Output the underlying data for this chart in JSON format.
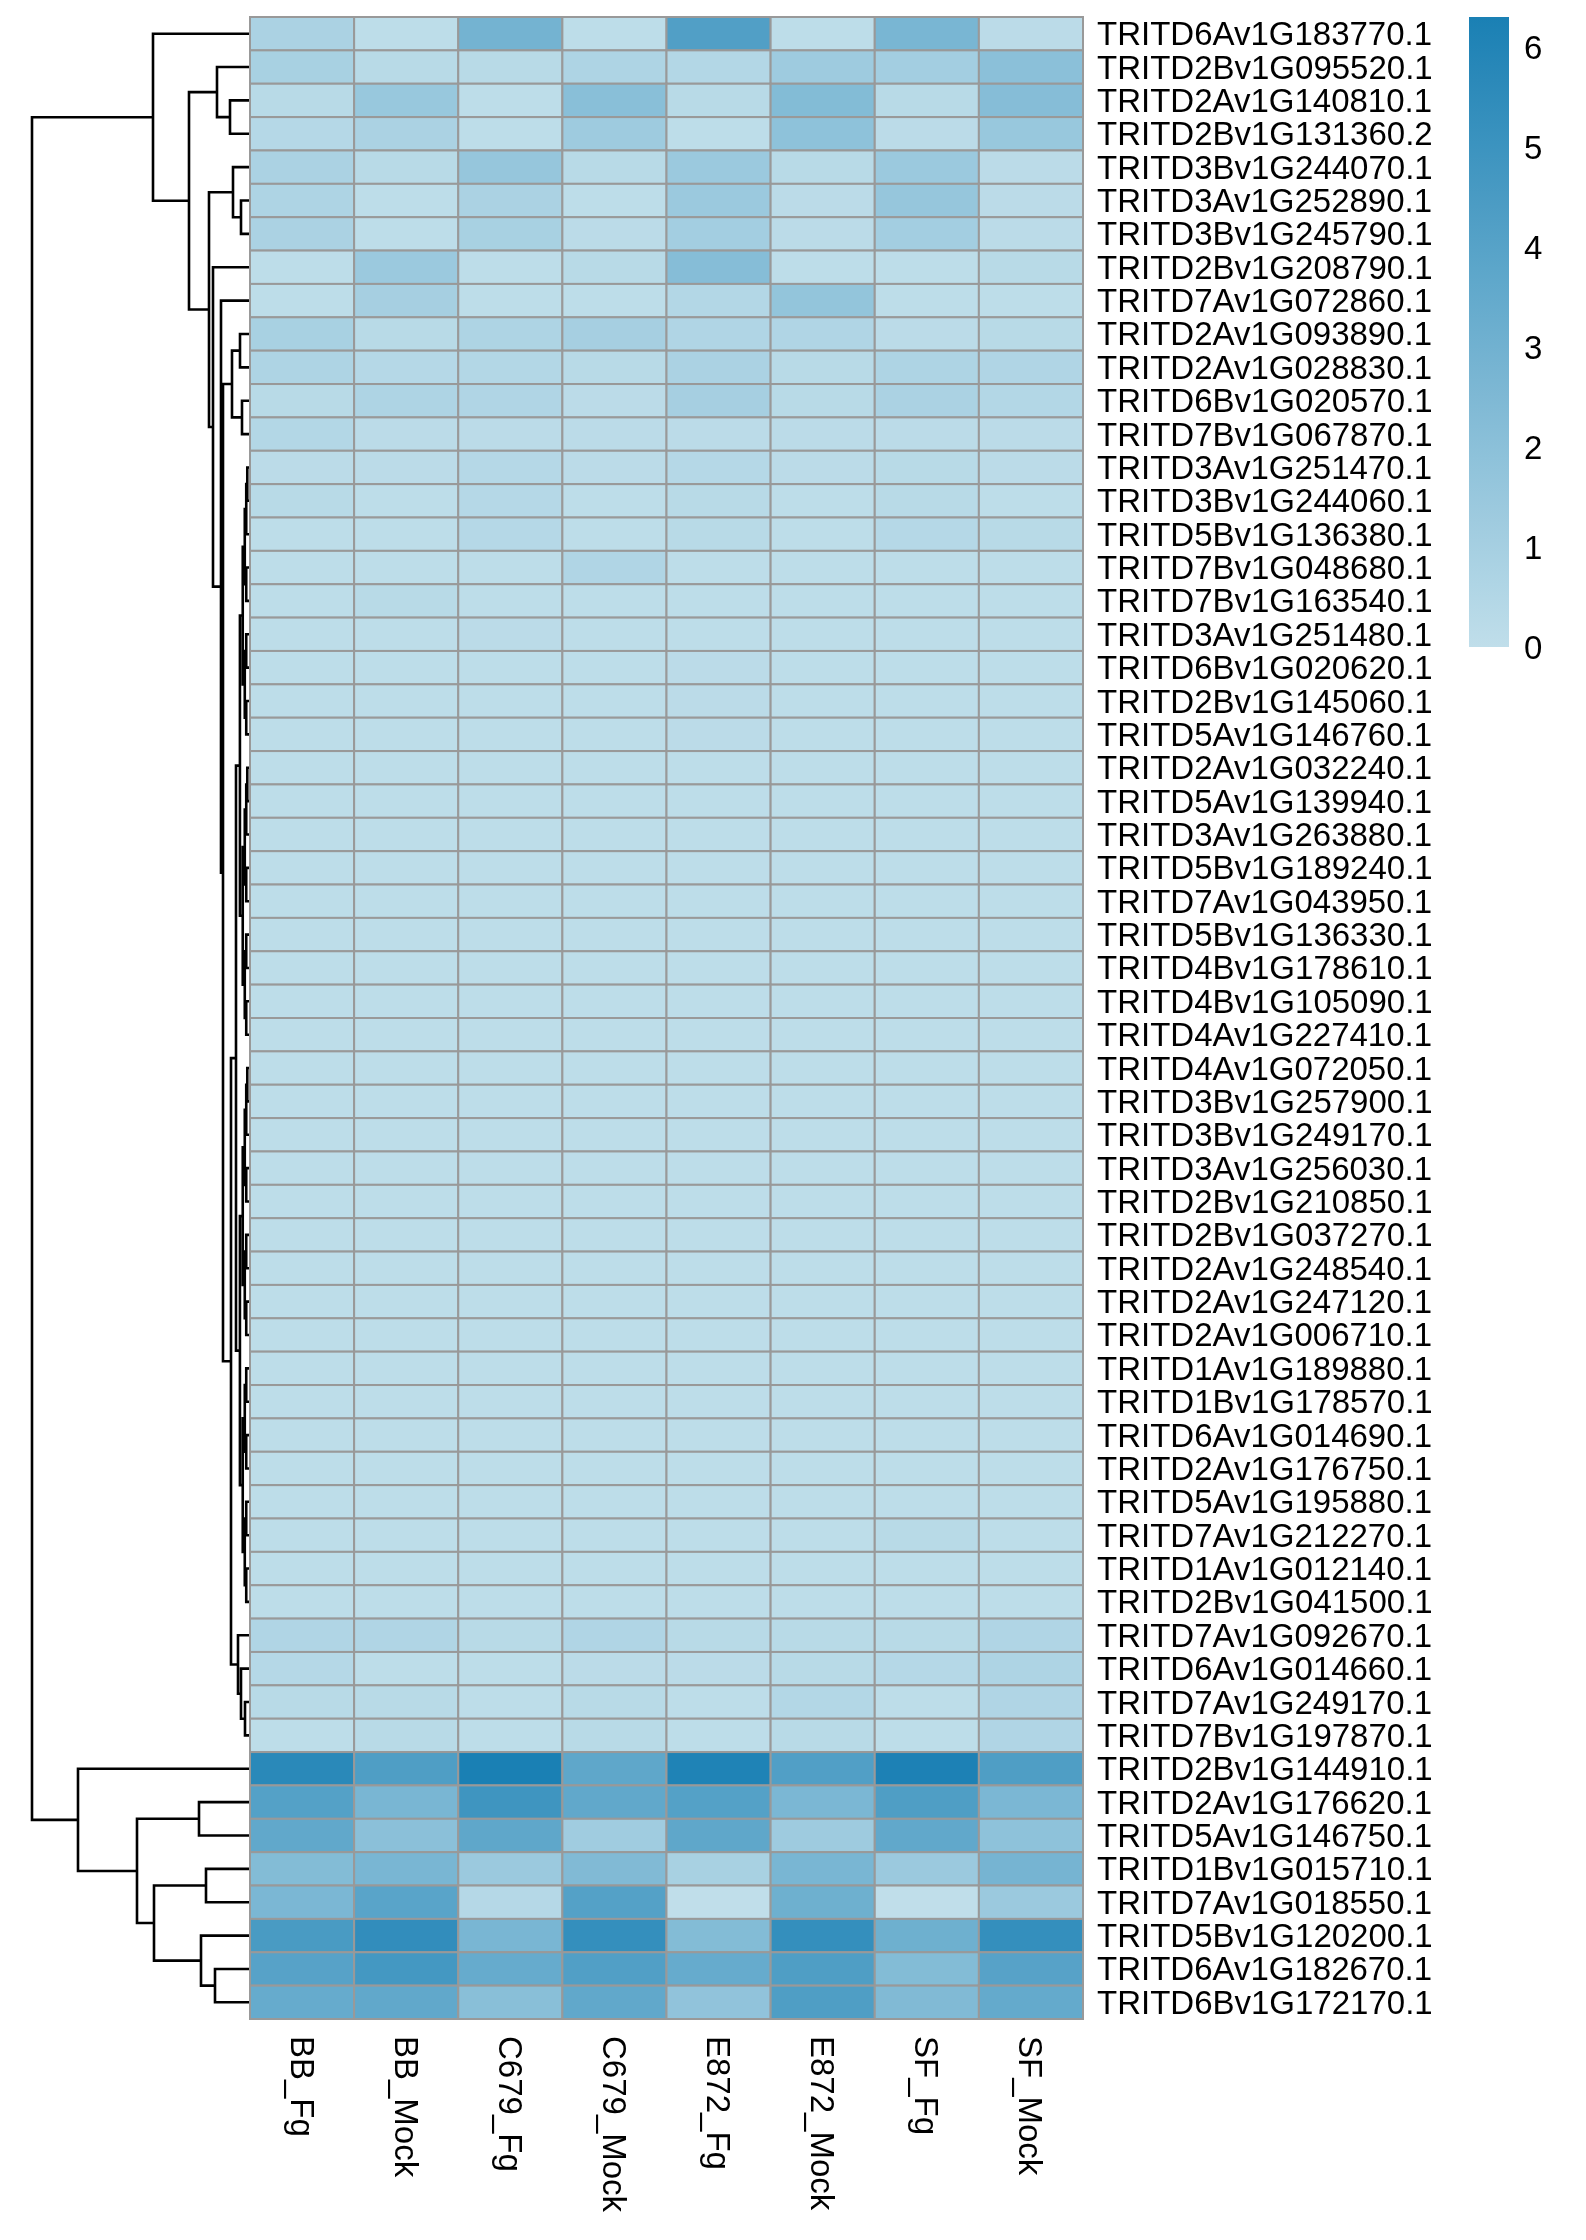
{
  "chart_data": {
    "type": "heatmap",
    "categories": [
      "BB_Fg",
      "BB_Mock",
      "C679_Fg",
      "C679_Mock",
      "E872_Fg",
      "E872_Mock",
      "SF_Fg",
      "SF_Mock"
    ],
    "y_categories": [
      "TRITD6Av1G183770.1",
      "TRITD2Bv1G095520.1",
      "TRITD2Av1G140810.1",
      "TRITD2Bv1G131360.2",
      "TRITD3Bv1G244070.1",
      "TRITD3Av1G252890.1",
      "TRITD3Bv1G245790.1",
      "TRITD2Bv1G208790.1",
      "TRITD7Av1G072860.1",
      "TRITD2Av1G093890.1",
      "TRITD2Av1G028830.1",
      "TRITD6Bv1G020570.1",
      "TRITD7Bv1G067870.1",
      "TRITD3Av1G251470.1",
      "TRITD3Bv1G244060.1",
      "TRITD5Bv1G136380.1",
      "TRITD7Bv1G048680.1",
      "TRITD7Bv1G163540.1",
      "TRITD3Av1G251480.1",
      "TRITD6Bv1G020620.1",
      "TRITD2Bv1G145060.1",
      "TRITD5Av1G146760.1",
      "TRITD2Av1G032240.1",
      "TRITD5Av1G139940.1",
      "TRITD3Av1G263880.1",
      "TRITD5Bv1G189240.1",
      "TRITD7Av1G043950.1",
      "TRITD5Bv1G136330.1",
      "TRITD4Bv1G178610.1",
      "TRITD4Bv1G105090.1",
      "TRITD4Av1G227410.1",
      "TRITD4Av1G072050.1",
      "TRITD3Bv1G257900.1",
      "TRITD3Bv1G249170.1",
      "TRITD3Av1G256030.1",
      "TRITD2Bv1G210850.1",
      "TRITD2Bv1G037270.1",
      "TRITD2Av1G248540.1",
      "TRITD2Av1G247120.1",
      "TRITD2Av1G006710.1",
      "TRITD1Av1G189880.1",
      "TRITD1Bv1G178570.1",
      "TRITD6Av1G014690.1",
      "TRITD2Av1G176750.1",
      "TRITD5Av1G195880.1",
      "TRITD7Av1G212270.1",
      "TRITD1Av1G012140.1",
      "TRITD2Bv1G041500.1",
      "TRITD7Av1G092670.1",
      "TRITD6Av1G014660.1",
      "TRITD7Av1G249170.1",
      "TRITD7Bv1G197870.1",
      "TRITD2Bv1G144910.1",
      "TRITD2Av1G176620.1",
      "TRITD5Av1G146750.1",
      "TRITD1Bv1G015710.1",
      "TRITD7Av1G018550.1",
      "TRITD5Bv1G120200.1",
      "TRITD6Av1G182670.1",
      "TRITD6Bv1G172170.1"
    ],
    "cells": [
      [
        0.8,
        0.1,
        2.9,
        0.1,
        4.2,
        0.1,
        2.7,
        0.2
      ],
      [
        0.9,
        0.3,
        0.3,
        0.7,
        0.5,
        1.3,
        1.1,
        2.0
      ],
      [
        0.3,
        1.5,
        0.1,
        2.1,
        0.3,
        2.3,
        0.3,
        2.2
      ],
      [
        0.4,
        0.8,
        0.1,
        1.3,
        0.1,
        1.9,
        0.2,
        1.5
      ],
      [
        0.8,
        0.3,
        1.6,
        0.3,
        1.4,
        0.3,
        1.4,
        0.2
      ],
      [
        0.7,
        0.1,
        0.8,
        0.1,
        1.4,
        0.2,
        1.6,
        0.2
      ],
      [
        0.8,
        0.1,
        0.9,
        0.2,
        1.1,
        0.2,
        1.1,
        0.2
      ],
      [
        0.1,
        1.4,
        0.1,
        0.3,
        2.2,
        0.1,
        0.1,
        0.3
      ],
      [
        0.1,
        1.0,
        0.1,
        0.1,
        0.5,
        1.7,
        0.1,
        0.1
      ],
      [
        0.9,
        0.3,
        0.7,
        1.0,
        0.6,
        0.6,
        0.2,
        0.3
      ],
      [
        0.7,
        0.4,
        0.5,
        0.3,
        0.8,
        0.3,
        0.7,
        0.6
      ],
      [
        0.3,
        0.7,
        0.6,
        0.2,
        1.0,
        0.3,
        0.8,
        0.5
      ],
      [
        0.5,
        0.2,
        0.2,
        0.2,
        0.2,
        0.2,
        0.2,
        0.2
      ],
      [
        0.2,
        0.2,
        0.4,
        0.2,
        0.4,
        0.2,
        0.3,
        0.2
      ],
      [
        0.3,
        0.1,
        0.4,
        0.1,
        0.3,
        0.1,
        0.3,
        0.1
      ],
      [
        0.1,
        0.1,
        0.4,
        0.1,
        0.3,
        0.1,
        0.4,
        0.3
      ],
      [
        0.1,
        0.1,
        0.1,
        0.6,
        0.1,
        0.1,
        0.1,
        0.1
      ],
      [
        0.1,
        0.3,
        0.1,
        0.1,
        0.1,
        0.1,
        0.1,
        0.1
      ],
      [
        0.1,
        0.1,
        0.2,
        0.1,
        0.1,
        0.1,
        0.1,
        0.1
      ],
      [
        0.1,
        0.1,
        0.1,
        0.1,
        0.2,
        0.1,
        0.1,
        0.1
      ],
      [
        0.1,
        0.1,
        0.1,
        0.1,
        0.2,
        0.1,
        0.1,
        0.1
      ],
      [
        0.1,
        0.1,
        0.1,
        0.1,
        0.2,
        0.1,
        0.1,
        0.1
      ],
      [
        0.1,
        0.1,
        0.1,
        0.1,
        0.1,
        0.1,
        0.1,
        0.1
      ],
      [
        0.1,
        0.1,
        0.1,
        0.1,
        0.1,
        0.1,
        0.1,
        0.1
      ],
      [
        0.1,
        0.1,
        0.1,
        0.1,
        0.1,
        0.1,
        0.1,
        0.1
      ],
      [
        0.1,
        0.1,
        0.1,
        0.1,
        0.1,
        0.1,
        0.1,
        0.1
      ],
      [
        0.1,
        0.1,
        0.1,
        0.1,
        0.1,
        0.1,
        0.1,
        0.1
      ],
      [
        0.1,
        0.1,
        0.1,
        0.1,
        0.1,
        0.1,
        0.1,
        0.1
      ],
      [
        0.1,
        0.1,
        0.1,
        0.1,
        0.1,
        0.1,
        0.1,
        0.1
      ],
      [
        0.1,
        0.1,
        0.1,
        0.1,
        0.1,
        0.1,
        0.1,
        0.1
      ],
      [
        0.1,
        0.1,
        0.1,
        0.1,
        0.1,
        0.1,
        0.1,
        0.1
      ],
      [
        0.1,
        0.1,
        0.1,
        0.1,
        0.1,
        0.1,
        0.1,
        0.1
      ],
      [
        0.1,
        0.1,
        0.1,
        0.1,
        0.1,
        0.1,
        0.1,
        0.1
      ],
      [
        0.1,
        0.1,
        0.1,
        0.1,
        0.1,
        0.1,
        0.1,
        0.1
      ],
      [
        0.1,
        0.1,
        0.1,
        0.1,
        0.1,
        0.1,
        0.1,
        0.1
      ],
      [
        0.1,
        0.1,
        0.1,
        0.1,
        0.1,
        0.1,
        0.1,
        0.1
      ],
      [
        0.1,
        0.1,
        0.1,
        0.1,
        0.1,
        0.1,
        0.1,
        0.1
      ],
      [
        0.1,
        0.1,
        0.1,
        0.1,
        0.1,
        0.1,
        0.1,
        0.1
      ],
      [
        0.1,
        0.1,
        0.1,
        0.1,
        0.1,
        0.1,
        0.1,
        0.1
      ],
      [
        0.1,
        0.1,
        0.1,
        0.1,
        0.1,
        0.1,
        0.1,
        0.1
      ],
      [
        0.1,
        0.1,
        0.1,
        0.1,
        0.1,
        0.1,
        0.1,
        0.1
      ],
      [
        0.1,
        0.1,
        0.1,
        0.1,
        0.1,
        0.1,
        0.1,
        0.1
      ],
      [
        0.1,
        0.1,
        0.1,
        0.1,
        0.1,
        0.1,
        0.1,
        0.1
      ],
      [
        0.1,
        0.1,
        0.1,
        0.1,
        0.1,
        0.1,
        0.1,
        0.1
      ],
      [
        0.1,
        0.1,
        0.1,
        0.1,
        0.1,
        0.1,
        0.1,
        0.1
      ],
      [
        0.1,
        0.1,
        0.1,
        0.1,
        0.1,
        0.1,
        0.3,
        0.1
      ],
      [
        0.1,
        0.1,
        0.1,
        0.1,
        0.1,
        0.1,
        0.1,
        0.1
      ],
      [
        0.1,
        0.1,
        0.1,
        0.1,
        0.1,
        0.1,
        0.1,
        0.1
      ],
      [
        0.6,
        0.6,
        0.3,
        0.6,
        0.3,
        0.3,
        0.3,
        0.6
      ],
      [
        0.4,
        0.1,
        0.1,
        0.2,
        0.2,
        0.3,
        0.4,
        0.7
      ],
      [
        0.3,
        0.3,
        0.1,
        0.3,
        0.1,
        0.5,
        0.1,
        0.6
      ],
      [
        0.1,
        0.3,
        0.1,
        0.3,
        0.1,
        0.3,
        0.1,
        0.6
      ],
      [
        5.7,
        4.3,
        6.3,
        3.7,
        6.1,
        4.2,
        6.2,
        4.3
      ],
      [
        4.1,
        2.7,
        4.9,
        3.6,
        4.1,
        2.6,
        4.3,
        2.6
      ],
      [
        3.6,
        2.0,
        3.7,
        1.2,
        3.7,
        1.3,
        3.6,
        1.9
      ],
      [
        2.3,
        2.7,
        1.4,
        2.4,
        0.9,
        2.7,
        1.4,
        2.8
      ],
      [
        2.6,
        3.9,
        0.4,
        4.1,
        0.0,
        3.1,
        0.0,
        1.4
      ],
      [
        4.5,
        5.4,
        2.7,
        5.3,
        2.3,
        5.3,
        3.1,
        5.3
      ],
      [
        4.0,
        4.7,
        3.4,
        4.2,
        3.4,
        4.3,
        2.3,
        4.0
      ],
      [
        3.4,
        3.6,
        2.1,
        3.6,
        1.8,
        4.3,
        2.4,
        3.5
      ]
    ],
    "clim": [
      0,
      6.3
    ],
    "cticks": [
      0,
      1,
      2,
      3,
      4,
      5,
      6
    ]
  }
}
